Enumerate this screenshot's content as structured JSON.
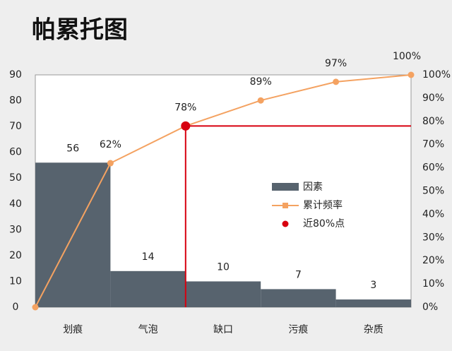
{
  "chart_data": {
    "type": "pareto",
    "title": "帕累托图",
    "categories": [
      "划痕",
      "气泡",
      "缺口",
      "污痕",
      "杂质"
    ],
    "series": [
      {
        "name": "因素",
        "type": "bar",
        "color": "#57636e",
        "values": [
          56,
          14,
          10,
          7,
          3
        ]
      },
      {
        "name": "累计频率",
        "type": "line",
        "axis": "y2",
        "color": "#f4a261",
        "values": [
          62,
          78,
          89,
          97,
          100
        ],
        "value_labels": [
          "62%",
          "78%",
          "89%",
          "97%",
          "100%"
        ]
      }
    ],
    "highlight": {
      "name": "近80%点",
      "color": "#d7000f",
      "category": "气泡"
    },
    "ylim": [
      0,
      90
    ],
    "yticks": [
      0,
      10,
      20,
      30,
      40,
      50,
      60,
      70,
      80,
      90
    ],
    "y2lim": [
      0,
      100
    ],
    "y2ticks": [
      {
        "value": 0,
        "label": "0%"
      },
      {
        "value": 10,
        "label": "10%"
      },
      {
        "value": 20,
        "label": "20%"
      },
      {
        "value": 30,
        "label": "30%"
      },
      {
        "value": 40,
        "label": "40%"
      },
      {
        "value": 50,
        "label": "50%"
      },
      {
        "value": 60,
        "label": "60%"
      },
      {
        "value": 70,
        "label": "70%"
      },
      {
        "value": 80,
        "label": "80%"
      },
      {
        "value": 90,
        "label": "90%"
      },
      {
        "value": 100,
        "label": "100%"
      }
    ]
  }
}
